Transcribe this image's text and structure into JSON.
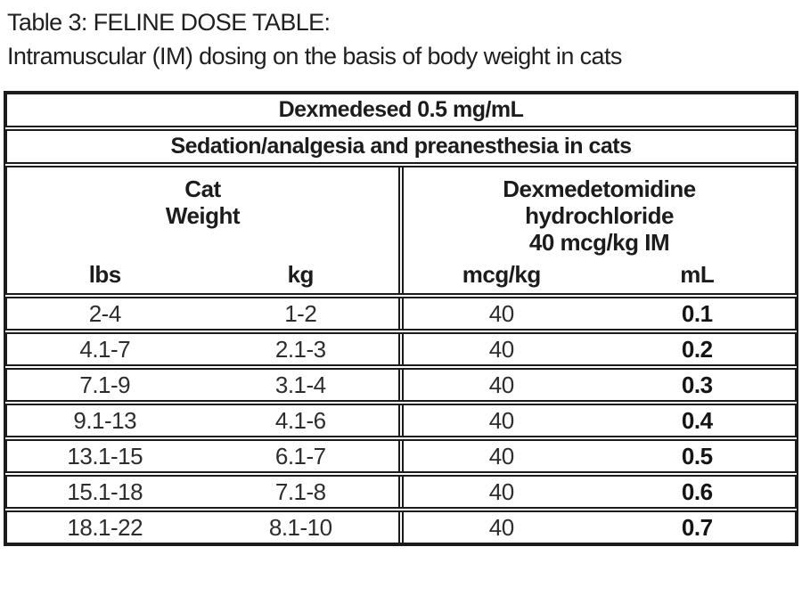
{
  "caption": {
    "line1": "Table 3: FELINE DOSE TABLE:",
    "line2": "Intramuscular (IM) dosing on the basis of body weight in cats"
  },
  "table": {
    "product": "Dexmedesed 0.5 mg/mL",
    "indication": "Sedation/analgesia and preanesthesia in cats",
    "left_group": {
      "label_lines": [
        "Cat",
        "Weight"
      ],
      "subheaders": [
        "lbs",
        "kg"
      ]
    },
    "right_group": {
      "label_lines": [
        "Dexmedetomidine",
        "hydrochloride",
        "40 mcg/kg IM"
      ],
      "subheaders": [
        "mcg/kg",
        "mL"
      ]
    },
    "rows": [
      {
        "lbs": "2-4",
        "kg": "1-2",
        "mcg_kg": "40",
        "ml": "0.1"
      },
      {
        "lbs": "4.1-7",
        "kg": "2.1-3",
        "mcg_kg": "40",
        "ml": "0.2"
      },
      {
        "lbs": "7.1-9",
        "kg": "3.1-4",
        "mcg_kg": "40",
        "ml": "0.3"
      },
      {
        "lbs": "9.1-13",
        "kg": "4.1-6",
        "mcg_kg": "40",
        "ml": "0.4"
      },
      {
        "lbs": "13.1-15",
        "kg": "6.1-7",
        "mcg_kg": "40",
        "ml": "0.5"
      },
      {
        "lbs": "15.1-18",
        "kg": "7.1-8",
        "mcg_kg": "40",
        "ml": "0.6"
      },
      {
        "lbs": "18.1-22",
        "kg": "8.1-10",
        "mcg_kg": "40",
        "ml": "0.7"
      }
    ],
    "colors": {
      "border": "#1b1b1b",
      "text": "#1f1f1f",
      "background": "#ffffff"
    }
  }
}
